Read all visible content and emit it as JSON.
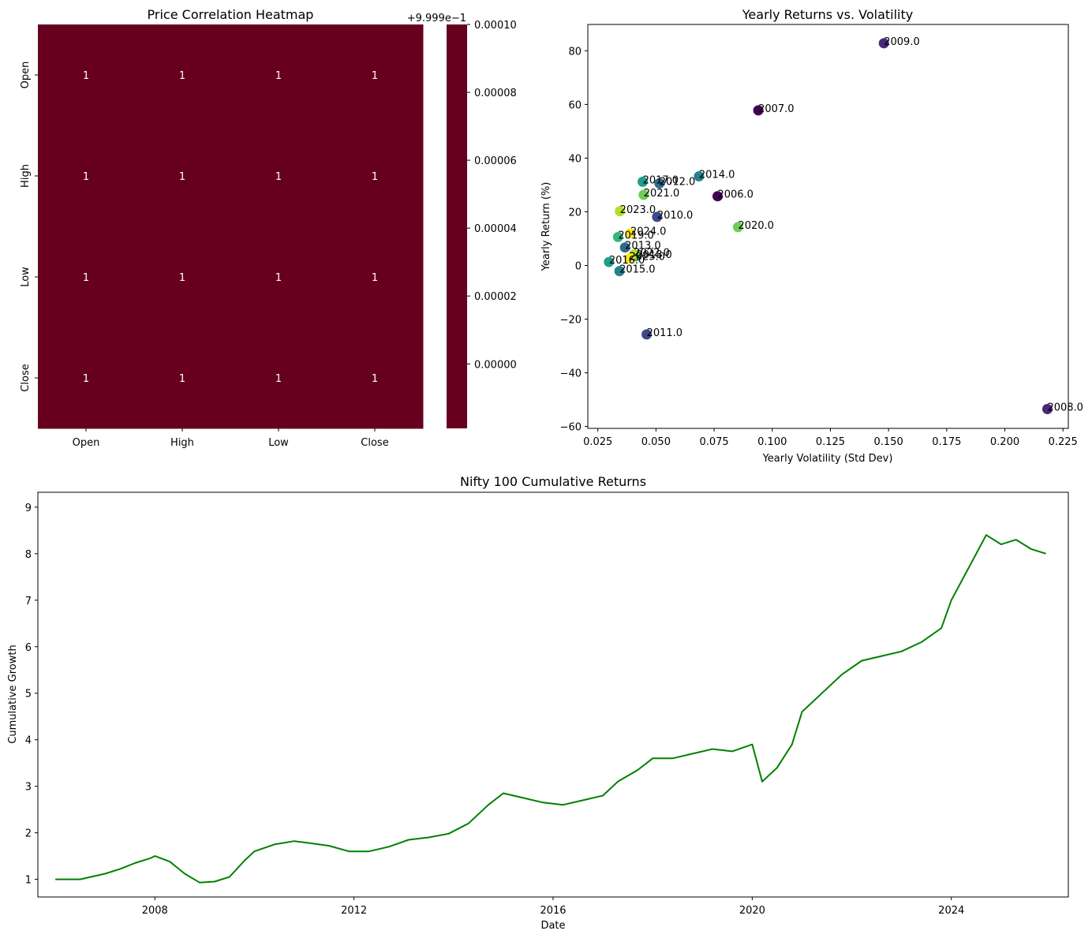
{
  "colors": {
    "heatmap_cell": "#67001f",
    "heatmap_text": "#ffffff",
    "line": "#008000",
    "axis": "#000000",
    "viridis": [
      "#440154",
      "#482878",
      "#3e4989",
      "#31688e",
      "#26828e",
      "#1f9e89",
      "#35b779",
      "#6ece58",
      "#b5de2b",
      "#fde725"
    ]
  },
  "chart_data": [
    {
      "type": "heatmap",
      "title": "Price Correlation Heatmap",
      "rows": [
        "Open",
        "High",
        "Low",
        "Close"
      ],
      "columns": [
        "Open",
        "High",
        "Low",
        "Close"
      ],
      "values": [
        [
          1,
          1,
          1,
          1
        ],
        [
          1,
          1,
          1,
          1
        ],
        [
          1,
          1,
          1,
          1
        ],
        [
          1,
          1,
          1,
          1
        ]
      ],
      "annotations": [
        [
          "1",
          "1",
          "1",
          "1"
        ],
        [
          "1",
          "1",
          "1",
          "1"
        ],
        [
          "1",
          "1",
          "1",
          "1"
        ],
        [
          "1",
          "1",
          "1",
          "1"
        ]
      ],
      "colorbar": {
        "offset_label": "+9.999e−1",
        "ticks": [
          0.0,
          2e-05,
          4e-05,
          6e-05,
          8e-05,
          0.0001
        ],
        "tick_labels": [
          "0.00000",
          "0.00002",
          "0.00004",
          "0.00006",
          "0.00008",
          "0.00010"
        ],
        "range": [
          -1.9e-05,
          0.0001
        ]
      }
    },
    {
      "type": "scatter",
      "title": "Yearly Returns vs. Volatility",
      "xlabel": "Yearly Volatility (Std Dev)",
      "ylabel": "Yearly Return (%)",
      "xlim": [
        0.0207,
        0.2273
      ],
      "ylim": [
        -60.7,
        89.8
      ],
      "xticks": [
        0.025,
        0.05,
        0.075,
        0.1,
        0.125,
        0.15,
        0.175,
        0.2,
        0.225
      ],
      "xtick_labels": [
        "0.025",
        "0.050",
        "0.075",
        "0.100",
        "0.125",
        "0.150",
        "0.175",
        "0.200",
        "0.225"
      ],
      "yticks": [
        -60,
        -40,
        -20,
        0,
        20,
        40,
        60,
        80
      ],
      "ytick_labels": [
        "−60",
        "−40",
        "−20",
        "0",
        "20",
        "40",
        "60",
        "80"
      ],
      "color_by": "year",
      "year_range": [
        2006,
        2025
      ],
      "points": [
        {
          "label": "2006.0",
          "year": 2006,
          "x": 0.0765,
          "y": 25.8
        },
        {
          "label": "2007.0",
          "year": 2007,
          "x": 0.094,
          "y": 57.8
        },
        {
          "label": "2008.0",
          "year": 2008,
          "x": 0.2183,
          "y": -53.5
        },
        {
          "label": "2009.0",
          "year": 2009,
          "x": 0.148,
          "y": 82.8
        },
        {
          "label": "2010.0",
          "year": 2010,
          "x": 0.0505,
          "y": 18.1
        },
        {
          "label": "2011.0",
          "year": 2011,
          "x": 0.046,
          "y": -25.7
        },
        {
          "label": "2012.0",
          "year": 2012,
          "x": 0.0515,
          "y": 30.6
        },
        {
          "label": "2013.0",
          "year": 2013,
          "x": 0.0367,
          "y": 6.7
        },
        {
          "label": "2014.0",
          "year": 2014,
          "x": 0.0685,
          "y": 33.2
        },
        {
          "label": "2015.0",
          "year": 2015,
          "x": 0.0343,
          "y": -2.1
        },
        {
          "label": "2016.0",
          "year": 2016,
          "x": 0.0298,
          "y": 1.3
        },
        {
          "label": "2017.0",
          "year": 2017,
          "x": 0.0443,
          "y": 31.2
        },
        {
          "label": "2018.0",
          "year": 2018,
          "x": 0.0415,
          "y": 3.4
        },
        {
          "label": "2019.0",
          "year": 2019,
          "x": 0.0337,
          "y": 10.6
        },
        {
          "label": "2020.0",
          "year": 2020,
          "x": 0.0853,
          "y": 14.3
        },
        {
          "label": "2021.0",
          "year": 2021,
          "x": 0.0447,
          "y": 26.3
        },
        {
          "label": "2022.0",
          "year": 2022,
          "x": 0.0405,
          "y": 4.1
        },
        {
          "label": "2023.0",
          "year": 2023,
          "x": 0.0345,
          "y": 20.2
        },
        {
          "label": "2024.0",
          "year": 2024,
          "x": 0.039,
          "y": 12.0
        },
        {
          "label": "2025.0",
          "year": 2025,
          "x": 0.0385,
          "y": 2.6
        }
      ]
    },
    {
      "type": "line",
      "title": "Nifty 100 Cumulative Returns",
      "xlabel": "Date",
      "ylabel": "Cumulative Growth",
      "xlim": [
        2005.65,
        2026.35
      ],
      "ylim": [
        0.62,
        9.32
      ],
      "xticks": [
        2008,
        2012,
        2016,
        2020,
        2024
      ],
      "xtick_labels": [
        "2008",
        "2012",
        "2016",
        "2020",
        "2024"
      ],
      "yticks": [
        1,
        2,
        3,
        4,
        5,
        6,
        7,
        8,
        9
      ],
      "ytick_labels": [
        "1",
        "2",
        "3",
        "4",
        "5",
        "6",
        "7",
        "8",
        "9"
      ],
      "series": [
        {
          "x": [
            2006.0,
            2006.5,
            2007.0,
            2007.3,
            2007.6,
            2007.9,
            2008.0,
            2008.3,
            2008.6,
            2008.9,
            2009.2,
            2009.5,
            2009.8,
            2010.0,
            2010.4,
            2010.8,
            2011.1,
            2011.5,
            2011.9,
            2012.3,
            2012.7,
            2013.1,
            2013.5,
            2013.9,
            2014.3,
            2014.7,
            2015.0,
            2015.4,
            2015.8,
            2016.2,
            2016.6,
            2017.0,
            2017.3,
            2017.7,
            2018.0,
            2018.4,
            2018.8,
            2019.2,
            2019.6,
            2020.0,
            2020.2,
            2020.5,
            2020.8,
            2021.0,
            2021.4,
            2021.8,
            2022.2,
            2022.6,
            2023.0,
            2023.4,
            2023.8,
            2024.0,
            2024.4,
            2024.7,
            2025.0,
            2025.3,
            2025.6,
            2025.9
          ],
          "y": [
            1.0,
            1.0,
            1.12,
            1.22,
            1.35,
            1.45,
            1.5,
            1.38,
            1.12,
            0.93,
            0.95,
            1.05,
            1.4,
            1.6,
            1.75,
            1.82,
            1.78,
            1.72,
            1.6,
            1.6,
            1.7,
            1.85,
            1.9,
            1.98,
            2.2,
            2.6,
            2.85,
            2.75,
            2.65,
            2.6,
            2.7,
            2.8,
            3.1,
            3.35,
            3.6,
            3.6,
            3.7,
            3.8,
            3.75,
            3.9,
            3.1,
            3.4,
            3.9,
            4.6,
            5.0,
            5.4,
            5.7,
            5.8,
            5.9,
            6.1,
            6.4,
            7.0,
            7.8,
            8.4,
            8.2,
            8.3,
            8.1,
            8.0
          ]
        }
      ]
    }
  ]
}
